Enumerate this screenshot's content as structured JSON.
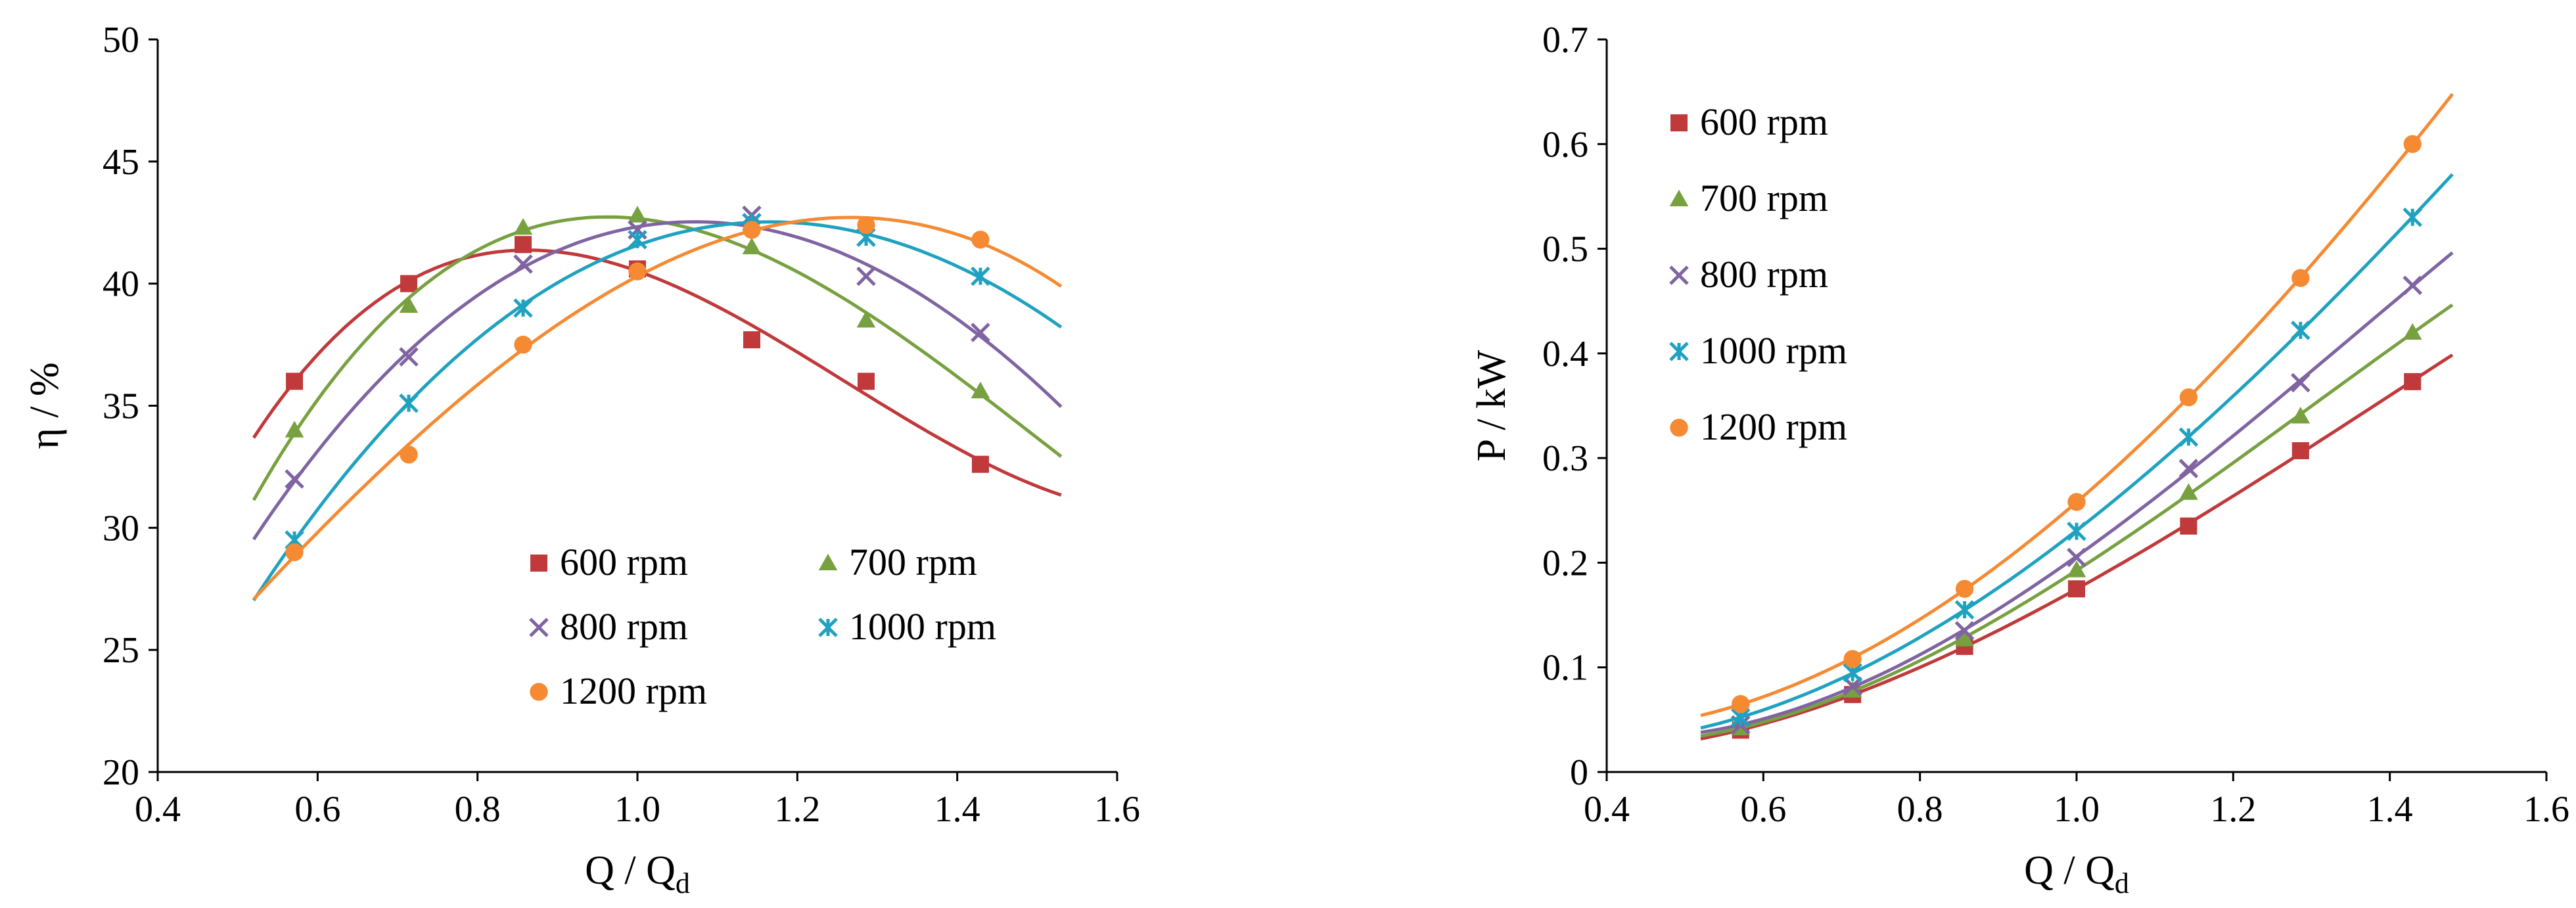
{
  "chart_data": [
    {
      "type": "scatter",
      "xlabel": "Q / Q",
      "xlabel_subscript": "d",
      "ylabel": "η / %",
      "xlim": [
        0.4,
        1.6
      ],
      "ylim": [
        20,
        50
      ],
      "xticks": [
        "0.4",
        "0.6",
        "0.8",
        "1.0",
        "1.2",
        "1.4",
        "1.6"
      ],
      "yticks": [
        "20",
        "25",
        "30",
        "35",
        "40",
        "45",
        "50"
      ],
      "grid": false,
      "legend_position": "bottom-right",
      "series": [
        {
          "name": "600 rpm",
          "marker": "square",
          "color": "#c0393b",
          "x": [
            0.571,
            0.714,
            0.857,
            1.0,
            1.143,
            1.286,
            1.429
          ],
          "y": [
            36.0,
            40.0,
            41.6,
            40.6,
            37.7,
            36.0,
            32.6
          ],
          "fit_x": [
            0.52,
            1.53
          ]
        },
        {
          "name": "700 rpm",
          "marker": "triangle",
          "color": "#77a140",
          "x": [
            0.571,
            0.714,
            0.857,
            1.0,
            1.143,
            1.286,
            1.429
          ],
          "y": [
            34.0,
            39.1,
            42.3,
            42.8,
            41.5,
            38.5,
            35.6
          ],
          "fit_x": [
            0.52,
            1.53
          ]
        },
        {
          "name": "800 rpm",
          "marker": "x",
          "color": "#8064a2",
          "x": [
            0.571,
            0.714,
            0.857,
            1.0,
            1.143,
            1.286,
            1.429
          ],
          "y": [
            32.0,
            37.0,
            40.8,
            42.2,
            42.8,
            40.3,
            38.0
          ],
          "fit_x": [
            0.52,
            1.53
          ]
        },
        {
          "name": "1000 rpm",
          "marker": "asterisk",
          "color": "#1fa2c0",
          "x": [
            0.571,
            0.714,
            0.857,
            1.0,
            1.143,
            1.286,
            1.429
          ],
          "y": [
            29.5,
            35.1,
            39.0,
            41.8,
            42.5,
            41.9,
            40.3
          ],
          "fit_x": [
            0.52,
            1.53
          ]
        },
        {
          "name": "1200 rpm",
          "marker": "circle",
          "color": "#f58a33",
          "x": [
            0.571,
            0.714,
            0.857,
            1.0,
            1.143,
            1.286,
            1.429
          ],
          "y": [
            29.0,
            33.0,
            37.5,
            40.5,
            42.2,
            42.4,
            41.8
          ],
          "fit_x": [
            0.52,
            1.53
          ]
        }
      ]
    },
    {
      "type": "scatter",
      "xlabel": "Q / Q",
      "xlabel_subscript": "d",
      "ylabel": "P / kW",
      "xlim": [
        0.4,
        1.6
      ],
      "ylim": [
        0,
        0.7
      ],
      "xticks": [
        "0.4",
        "0.6",
        "0.8",
        "1.0",
        "1.2",
        "1.4",
        "1.6"
      ],
      "yticks": [
        "0",
        "0.1",
        "0.2",
        "0.3",
        "0.4",
        "0.5",
        "0.6",
        "0.7"
      ],
      "grid": false,
      "legend_position": "top-left",
      "series": [
        {
          "name": "600 rpm",
          "marker": "square",
          "color": "#c0393b",
          "x": [
            0.571,
            0.714,
            0.857,
            1.0,
            1.143,
            1.286,
            1.429
          ],
          "y": [
            0.04,
            0.074,
            0.12,
            0.175,
            0.235,
            0.307,
            0.373
          ],
          "fit_x": [
            0.52,
            1.48
          ]
        },
        {
          "name": "700 rpm",
          "marker": "triangle",
          "color": "#77a140",
          "x": [
            0.571,
            0.714,
            0.857,
            1.0,
            1.143,
            1.286,
            1.429
          ],
          "y": [
            0.042,
            0.078,
            0.127,
            0.193,
            0.267,
            0.34,
            0.42
          ],
          "fit_x": [
            0.52,
            1.48
          ]
        },
        {
          "name": "800 rpm",
          "marker": "x",
          "color": "#8064a2",
          "x": [
            0.571,
            0.714,
            0.857,
            1.0,
            1.143,
            1.286,
            1.429
          ],
          "y": [
            0.045,
            0.082,
            0.135,
            0.205,
            0.29,
            0.372,
            0.465
          ],
          "fit_x": [
            0.52,
            1.48
          ]
        },
        {
          "name": "1000 rpm",
          "marker": "asterisk",
          "color": "#1fa2c0",
          "x": [
            0.571,
            0.714,
            0.857,
            1.0,
            1.143,
            1.286,
            1.429
          ],
          "y": [
            0.052,
            0.095,
            0.155,
            0.23,
            0.32,
            0.422,
            0.53
          ],
          "fit_x": [
            0.52,
            1.48
          ]
        },
        {
          "name": "1200 rpm",
          "marker": "circle",
          "color": "#f58a33",
          "x": [
            0.571,
            0.714,
            0.857,
            1.0,
            1.143,
            1.286,
            1.429
          ],
          "y": [
            0.065,
            0.108,
            0.175,
            0.258,
            0.358,
            0.472,
            0.6
          ],
          "fit_x": [
            0.52,
            1.48
          ]
        }
      ]
    }
  ]
}
